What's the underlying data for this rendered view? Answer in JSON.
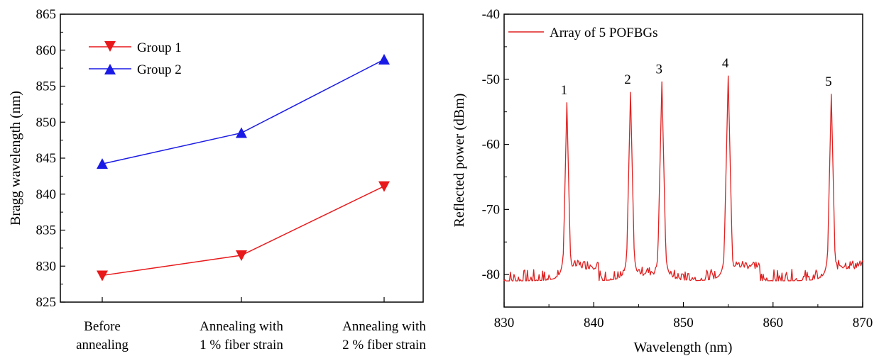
{
  "colors": {
    "group1": "#e8191b",
    "group2": "#1a1ae6",
    "spectrum": "#e02020",
    "axis": "#000000"
  },
  "chart_data": [
    {
      "type": "line",
      "title": "",
      "xlabel": "",
      "ylabel": "Bragg wavelength (nm)",
      "categories": [
        [
          "Before",
          "annealing"
        ],
        [
          "Annealing with",
          "1 % fiber strain"
        ],
        [
          "Annealing with",
          "2 % fiber strain"
        ]
      ],
      "ylim": [
        825,
        865
      ],
      "yticks": [
        825,
        830,
        835,
        840,
        845,
        850,
        855,
        860,
        865
      ],
      "grid": false,
      "legend_position": "top-left",
      "series": [
        {
          "name": "Group 1",
          "marker": "triangle-down",
          "color": "#e8191b",
          "values": [
            828.7,
            831.5,
            841.1
          ]
        },
        {
          "name": "Group 2",
          "marker": "triangle-up",
          "color": "#1a1ae6",
          "values": [
            844.2,
            848.5,
            858.7
          ]
        }
      ]
    },
    {
      "type": "line",
      "title": "",
      "xlabel": "Wavelength (nm)",
      "ylabel": "Reflected power (dBm)",
      "xlim": [
        830,
        870
      ],
      "ylim": [
        -85,
        -40
      ],
      "xticks": [
        830,
        840,
        850,
        860,
        870
      ],
      "yticks": [
        -80,
        -70,
        -60,
        -50,
        -40
      ],
      "grid": false,
      "legend_position": "top-left",
      "series": [
        {
          "name": "Array of 5 POFBGs",
          "color": "#e02020",
          "baseline": -81,
          "peaks": [
            {
              "label": "1",
              "x": 837.0,
              "y": -53.6,
              "shoulder": -78.5
            },
            {
              "label": "2",
              "x": 844.1,
              "y": -52.0,
              "shoulder": -79.5
            },
            {
              "label": "3",
              "x": 847.6,
              "y": -50.4,
              "shoulder": -80.5
            },
            {
              "label": "4",
              "x": 855.0,
              "y": -49.5,
              "shoulder": -78.5
            },
            {
              "label": "5",
              "x": 866.5,
              "y": -52.3,
              "shoulder": -78.5
            }
          ]
        }
      ]
    }
  ]
}
